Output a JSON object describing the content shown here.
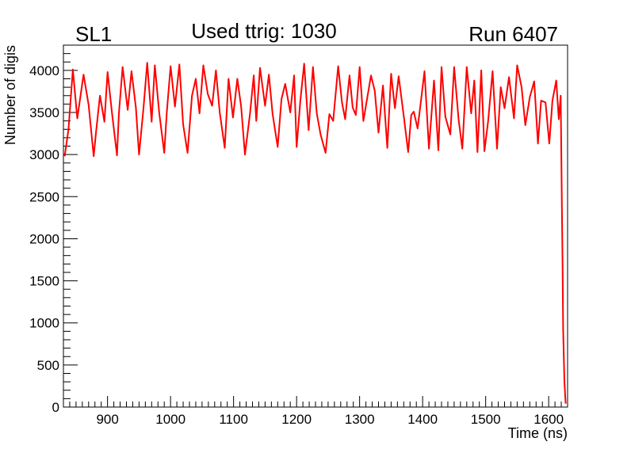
{
  "chart_data": {
    "type": "line",
    "title_left": "SL1",
    "title": "Used ttrig: 1030",
    "title_right": "Run 6407",
    "xlabel": "Time (ns)",
    "ylabel": "Number of digis",
    "xlim": [
      830,
      1630
    ],
    "ylim": [
      0,
      4300
    ],
    "xticks": [
      900,
      1000,
      1100,
      1200,
      1300,
      1400,
      1500,
      1600
    ],
    "xtick_labels": [
      "900",
      "1000",
      "1100",
      "1200",
      "1300",
      "1400",
      "1500",
      "1600"
    ],
    "yticks": [
      0,
      500,
      1000,
      1500,
      2000,
      2500,
      3000,
      3500,
      4000
    ],
    "ytick_labels": [
      "0",
      "500",
      "1000",
      "1500",
      "2000",
      "2500",
      "3000",
      "3500",
      "4000"
    ],
    "grid": false,
    "colors": {
      "line": "#ff0000",
      "frame": "#000000"
    },
    "series": [
      {
        "x": [
          832,
          838,
          845,
          852,
          862,
          870,
          878,
          882,
          888,
          895,
          900,
          907,
          915,
          918,
          924,
          932,
          938,
          945,
          950,
          957,
          963,
          970,
          975,
          982,
          990,
          994,
          1000,
          1007,
          1014,
          1020,
          1027,
          1034,
          1040,
          1046,
          1052,
          1059,
          1066,
          1072,
          1078,
          1086,
          1092,
          1099,
          1106,
          1112,
          1118,
          1126,
          1132,
          1136,
          1142,
          1150,
          1156,
          1162,
          1170,
          1176,
          1182,
          1190,
          1196,
          1200,
          1206,
          1212,
          1219,
          1226,
          1232,
          1238,
          1246,
          1252,
          1258,
          1266,
          1272,
          1277,
          1284,
          1289,
          1294,
          1300,
          1306,
          1310,
          1318,
          1324,
          1330,
          1337,
          1344,
          1350,
          1356,
          1362,
          1370,
          1377,
          1382,
          1386,
          1392,
          1397,
          1403,
          1410,
          1418,
          1425,
          1430,
          1436,
          1444,
          1450,
          1457,
          1463,
          1470,
          1477,
          1482,
          1487,
          1493,
          1498,
          1504,
          1511,
          1518,
          1524,
          1530,
          1537,
          1545,
          1550,
          1557,
          1563,
          1570,
          1577,
          1583,
          1588,
          1595,
          1601,
          1606,
          1612,
          1616,
          1619,
          1621,
          1622,
          1623,
          1625,
          1627
        ],
        "y": [
          2980,
          3300,
          4010,
          3430,
          3950,
          3590,
          2980,
          3280,
          3700,
          3390,
          3980,
          3500,
          2990,
          3490,
          4040,
          3530,
          3990,
          3560,
          3000,
          3550,
          4090,
          3390,
          4060,
          3500,
          3020,
          3500,
          4050,
          3570,
          4070,
          3360,
          3020,
          3700,
          3900,
          3490,
          4060,
          3720,
          3580,
          4000,
          3500,
          3080,
          3900,
          3440,
          3900,
          3570,
          3000,
          3480,
          3940,
          3400,
          4030,
          3580,
          3950,
          3480,
          3090,
          3660,
          3840,
          3500,
          3940,
          3090,
          3640,
          4080,
          3290,
          4040,
          3490,
          3240,
          3020,
          3480,
          3400,
          4050,
          3620,
          3420,
          3940,
          3560,
          3470,
          4040,
          3400,
          3580,
          3940,
          3760,
          3260,
          3820,
          3080,
          3960,
          3550,
          3930,
          3460,
          3030,
          3470,
          3510,
          3310,
          3620,
          3990,
          3070,
          3880,
          3050,
          4040,
          3450,
          3240,
          4040,
          3420,
          3070,
          4040,
          3490,
          3880,
          3030,
          4000,
          3040,
          3400,
          3990,
          3070,
          3800,
          3550,
          3920,
          3430,
          4060,
          3800,
          3350,
          3680,
          3870,
          3130,
          3640,
          3620,
          3130,
          3640,
          3880,
          3420,
          3700,
          2400,
          1750,
          930,
          300,
          40
        ]
      }
    ]
  }
}
